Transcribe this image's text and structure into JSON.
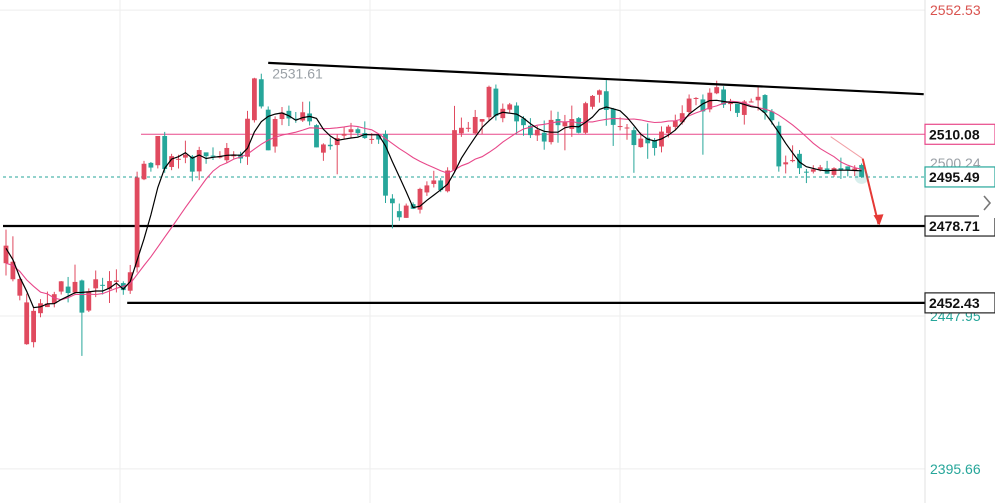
{
  "colors": {
    "up": "#e04a5f",
    "down": "#26a69a",
    "grid": "#eeeeee",
    "ma_fast": "#000000",
    "ma_slow": "#e8488a",
    "resistance": "#e8488a",
    "arrow": "#e53935",
    "current_line": "#26a69a",
    "tag_bg": "#ffffff",
    "tag_border": "#222222",
    "axis_red": "#d9534f",
    "axis_green": "#26a69a",
    "axis_gray": "#9aa0a6"
  },
  "chart_data": {
    "type": "candlestick",
    "title": "",
    "ylim": [
      2384,
      2556
    ],
    "grid": true,
    "axis_labels": [
      {
        "value": 2552.53,
        "text": "2552.53",
        "color": "red"
      },
      {
        "value": 2500.24,
        "text": "2500.24",
        "color": "gray"
      },
      {
        "value": 2447.95,
        "text": "2447.95",
        "color": "green"
      },
      {
        "value": 2395.66,
        "text": "2395.66",
        "color": "green"
      }
    ],
    "price_tags": [
      {
        "value": 2510.08,
        "text": "2510.08",
        "style": "pink"
      },
      {
        "value": 2495.49,
        "text": "2495.49",
        "style": "green"
      },
      {
        "value": 2478.71,
        "text": "2478.71",
        "style": "black"
      },
      {
        "value": 2452.43,
        "text": "2452.43",
        "style": "black"
      }
    ],
    "annotations": [
      {
        "text": "2531.61",
        "value": 2531.61,
        "bar": 38
      }
    ],
    "horizontal_levels": [
      {
        "value": 2510.08,
        "style": "pink",
        "from_bar": 20
      },
      {
        "value": 2495.49,
        "style": "dashed-green",
        "from_bar": 0
      },
      {
        "value": 2478.71,
        "style": "black",
        "from_bar": 0
      },
      {
        "value": 2452.43,
        "style": "black",
        "from_bar": 18
      }
    ],
    "trendline": {
      "from": {
        "bar": 38,
        "value": 2534.5
      },
      "to": {
        "bar": 133,
        "value": 2523.8
      }
    },
    "forecast_arrow": {
      "from": {
        "bar": 123,
        "value": 2499.0
      },
      "to": {
        "bar": 125,
        "value": 2480.0
      }
    },
    "candles": [
      [
        2466.0,
        2472.0,
        2461.8,
        2477.5
      ],
      [
        2460.5,
        2466.5,
        2459.8,
        2475.2
      ],
      [
        2454.9,
        2460.6,
        2453.3,
        2461.4
      ],
      [
        2438.3,
        2452.6,
        2438.1,
        2455.6
      ],
      [
        2439.0,
        2449.7,
        2437.2,
        2450.6
      ],
      [
        2448.9,
        2452.3,
        2447.5,
        2453.7
      ],
      [
        2451.0,
        2452.2,
        2451.0,
        2456.3
      ],
      [
        2452.3,
        2455.4,
        2450.9,
        2456.2
      ],
      [
        2456.3,
        2459.8,
        2455.3,
        2459.9
      ],
      [
        2458.0,
        2455.8,
        2452.6,
        2461.3
      ],
      [
        2456.0,
        2459.6,
        2455.1,
        2465.5
      ],
      [
        2460.1,
        2449.1,
        2434.3,
        2460.4
      ],
      [
        2449.8,
        2456.4,
        2449.3,
        2457.4
      ],
      [
        2457.4,
        2460.5,
        2454.4,
        2463.5
      ],
      [
        2458.6,
        2458.4,
        2455.3,
        2461.0
      ],
      [
        2457.1,
        2459.9,
        2452.4,
        2463.3
      ],
      [
        2459.6,
        2460.1,
        2456.0,
        2463.9
      ],
      [
        2459.2,
        2456.8,
        2455.2,
        2459.8
      ],
      [
        2456.6,
        2462.9,
        2455.5,
        2465.4
      ],
      [
        2464.6,
        2495.3,
        2462.8,
        2497.3
      ],
      [
        2494.7,
        2500.0,
        2494.4,
        2501.0
      ],
      [
        2500.3,
        2498.7,
        2497.3,
        2500.6
      ],
      [
        2499.5,
        2509.5,
        2498.4,
        2509.5
      ],
      [
        2509.5,
        2498.2,
        2496.9,
        2510.9
      ],
      [
        2498.9,
        2502.6,
        2497.8,
        2503.4
      ],
      [
        2501.7,
        2501.7,
        2498.4,
        2503.1
      ],
      [
        2502.1,
        2503.1,
        2500.2,
        2507.9
      ],
      [
        2502.5,
        2497.3,
        2494.0,
        2503.0
      ],
      [
        2497.4,
        2504.7,
        2494.4,
        2505.8
      ],
      [
        2503.9,
        2502.6,
        2500.0,
        2503.8
      ],
      [
        2502.8,
        2502.4,
        2501.3,
        2505.6
      ],
      [
        2502.1,
        2502.6,
        2501.8,
        2504.3
      ],
      [
        2501.2,
        2505.4,
        2500.2,
        2507.1
      ],
      [
        2502.7,
        2502.9,
        2501.8,
        2504.3
      ],
      [
        2503.2,
        2501.8,
        2500.2,
        2504.1
      ],
      [
        2502.4,
        2515.4,
        2499.6,
        2518.1
      ],
      [
        2514.9,
        2529.2,
        2514.1,
        2529.4
      ],
      [
        2528.9,
        2519.6,
        2518.9,
        2530.8
      ],
      [
        2518.5,
        2504.6,
        2504.6,
        2519.6
      ],
      [
        2505.9,
        2515.3,
        2503.8,
        2516.2
      ],
      [
        2515.3,
        2517.5,
        2513.2,
        2519.4
      ],
      [
        2518.1,
        2515.5,
        2512.9,
        2519.9
      ],
      [
        2515.4,
        2515.1,
        2514.0,
        2517.7
      ],
      [
        2514.8,
        2517.6,
        2514.3,
        2521.2
      ],
      [
        2517.2,
        2514.5,
        2513.1,
        2521.3
      ],
      [
        2513.2,
        2505.6,
        2505.6,
        2513.5
      ],
      [
        2503.8,
        2506.6,
        2501.0,
        2507.0
      ],
      [
        2506.5,
        2506.0,
        2504.8,
        2509.0
      ],
      [
        2506.4,
        2508.8,
        2496.4,
        2510.1
      ],
      [
        2509.6,
        2510.2,
        2508.3,
        2512.6
      ],
      [
        2510.8,
        2511.8,
        2508.9,
        2514.0
      ],
      [
        2511.8,
        2510.5,
        2509.3,
        2512.4
      ],
      [
        2510.5,
        2508.8,
        2508.5,
        2514.5
      ],
      [
        2508.4,
        2508.5,
        2506.8,
        2510.5
      ],
      [
        2509.9,
        2508.3,
        2506.8,
        2510.3
      ],
      [
        2510.2,
        2489.1,
        2486.6,
        2511.4
      ],
      [
        2488.1,
        2486.5,
        2477.9,
        2489.6
      ],
      [
        2483.8,
        2481.7,
        2480.5,
        2486.4
      ],
      [
        2481.5,
        2485.7,
        2481.5,
        2486.4
      ],
      [
        2486.2,
        2484.6,
        2484.5,
        2486.8
      ],
      [
        2484.3,
        2491.4,
        2483.0,
        2491.8
      ],
      [
        2490.2,
        2492.6,
        2489.0,
        2494.0
      ],
      [
        2493.1,
        2494.3,
        2491.9,
        2497.6
      ],
      [
        2494.3,
        2491.0,
        2490.3,
        2495.1
      ],
      [
        2490.6,
        2497.7,
        2490.2,
        2498.8
      ],
      [
        2497.9,
        2511.5,
        2497.0,
        2519.8
      ],
      [
        2510.4,
        2512.3,
        2509.2,
        2515.8
      ],
      [
        2512.0,
        2512.3,
        2510.9,
        2514.3
      ],
      [
        2510.4,
        2516.0,
        2510.0,
        2518.4
      ],
      [
        2514.4,
        2515.3,
        2510.2,
        2515.3
      ],
      [
        2515.9,
        2526.3,
        2514.8,
        2526.7
      ],
      [
        2525.7,
        2516.4,
        2514.8,
        2527.1
      ],
      [
        2515.6,
        2518.8,
        2514.2,
        2520.6
      ],
      [
        2518.5,
        2520.3,
        2517.5,
        2520.8
      ],
      [
        2519.9,
        2514.5,
        2510.0,
        2521.0
      ],
      [
        2515.5,
        2513.2,
        2509.6,
        2516.3
      ],
      [
        2513.0,
        2509.8,
        2508.8,
        2515.6
      ],
      [
        2509.7,
        2511.6,
        2507.8,
        2512.9
      ],
      [
        2510.6,
        2507.6,
        2504.8,
        2514.8
      ],
      [
        2507.4,
        2515.0,
        2506.6,
        2518.2
      ],
      [
        2515.3,
        2513.2,
        2507.2,
        2517.8
      ],
      [
        2512.8,
        2514.2,
        2504.6,
        2516.7
      ],
      [
        2511.9,
        2515.3,
        2509.2,
        2519.9
      ],
      [
        2515.6,
        2510.6,
        2510.4,
        2516.0
      ],
      [
        2510.6,
        2520.7,
        2510.1,
        2521.2
      ],
      [
        2519.5,
        2523.2,
        2518.6,
        2523.5
      ],
      [
        2523.6,
        2525.1,
        2520.9,
        2525.4
      ],
      [
        2524.8,
        2518.4,
        2513.0,
        2528.6
      ],
      [
        2518.8,
        2513.3,
        2506.1,
        2519.1
      ],
      [
        2512.6,
        2512.9,
        2511.4,
        2515.9
      ],
      [
        2512.4,
        2512.4,
        2508.2,
        2513.6
      ],
      [
        2511.5,
        2506.4,
        2496.9,
        2512.5
      ],
      [
        2505.7,
        2508.6,
        2505.5,
        2510.7
      ],
      [
        2508.9,
        2507.0,
        2501.7,
        2513.8
      ],
      [
        2508.0,
        2505.4,
        2502.8,
        2508.8
      ],
      [
        2505.9,
        2511.0,
        2503.9,
        2512.8
      ],
      [
        2510.5,
        2512.7,
        2509.0,
        2513.3
      ],
      [
        2512.6,
        2514.6,
        2511.6,
        2516.8
      ],
      [
        2514.2,
        2517.3,
        2513.4,
        2520.0
      ],
      [
        2517.7,
        2522.3,
        2516.8,
        2523.7
      ],
      [
        2522.5,
        2522.5,
        2520.0,
        2522.8
      ],
      [
        2522.0,
        2517.9,
        2503.1,
        2523.7
      ],
      [
        2518.6,
        2524.3,
        2517.6,
        2525.8
      ],
      [
        2524.1,
        2526.2,
        2523.8,
        2528.4
      ],
      [
        2525.4,
        2520.2,
        2519.1,
        2526.5
      ],
      [
        2520.4,
        2520.8,
        2518.0,
        2522.2
      ],
      [
        2520.5,
        2517.4,
        2516.0,
        2520.5
      ],
      [
        2516.7,
        2521.3,
        2513.4,
        2521.8
      ],
      [
        2521.1,
        2521.3,
        2521.1,
        2522.3
      ],
      [
        2521.7,
        2522.9,
        2518.2,
        2526.3
      ],
      [
        2523.5,
        2517.5,
        2515.1,
        2523.8
      ],
      [
        2517.9,
        2514.9,
        2513.4,
        2518.7
      ],
      [
        2513.0,
        2499.1,
        2497.3,
        2514.4
      ],
      [
        2499.8,
        2500.5,
        2496.7,
        2502.8
      ],
      [
        2500.9,
        2501.3,
        2500.5,
        2506.3
      ],
      [
        2503.4,
        2498.5,
        2496.5,
        2504.7
      ],
      [
        2497.3,
        2497.1,
        2493.4,
        2498.2
      ],
      [
        2497.3,
        2498.1,
        2496.7,
        2499.5
      ],
      [
        2498.0,
        2498.8,
        2497.4,
        2499.6
      ],
      [
        2498.4,
        2496.6,
        2496.6,
        2501.0
      ],
      [
        2496.2,
        2498.5,
        2495.5,
        2498.8
      ],
      [
        2498.5,
        2497.9,
        2494.8,
        2502.1
      ],
      [
        2499.1,
        2497.7,
        2495.7,
        2499.1
      ],
      [
        2497.5,
        2498.4,
        2495.8,
        2499.5
      ],
      [
        2499.6,
        2495.5,
        2495.2,
        2500.1
      ]
    ],
    "ma_fast": [
      2471.1,
      2467.2,
      2461.2,
      2456.4,
      2450.8,
      2451.1,
      2452.1,
      2452.2,
      2453.6,
      2454.7,
      2455.9,
      2456.0,
      2456.2,
      2456.5,
      2456.5,
      2457.5,
      2459.2,
      2457.1,
      2459.7,
      2467.0,
      2474.3,
      2482.5,
      2491.9,
      2498.5,
      2501.6,
      2502.4,
      2503.8,
      2501.9,
      2503.0,
      2501.8,
      2502.2,
      2502.5,
      2502.9,
      2503.0,
      2502.9,
      2505.3,
      2510.9,
      2514.4,
      2516.2,
      2517.0,
      2517.4,
      2516.4,
      2514.9,
      2515.8,
      2516.2,
      2515.5,
      2511.8,
      2509.5,
      2508.0,
      2508.4,
      2508.8,
      2509.1,
      2510.0,
      2509.9,
      2509.9,
      2506.1,
      2500.7,
      2495.6,
      2490.4,
      2485.0,
      2485.5,
      2487.5,
      2489.3,
      2491.1,
      2493.0,
      2497.1,
      2501.9,
      2505.6,
      2509.1,
      2512.4,
      2514.7,
      2516.7,
      2517.6,
      2517.3,
      2517.0,
      2515.6,
      2513.7,
      2512.1,
      2511.1,
      2510.8,
      2510.8,
      2512.3,
      2512.8,
      2512.6,
      2514.2,
      2516.0,
      2518.6,
      2519.4,
      2518.8,
      2518.1,
      2515.9,
      2513.1,
      2510.1,
      2508.4,
      2507.8,
      2508.5,
      2509.8,
      2511.5,
      2514.1,
      2517.0,
      2518.8,
      2520.5,
      2521.6,
      2521.7,
      2521.3,
      2521.0,
      2520.9,
      2520.3,
      2519.5,
      2519.2,
      2517.3,
      2514.1,
      2510.7,
      2507.0,
      2503.7,
      2500.6,
      2499.0,
      2498.4,
      2497.8,
      2497.6,
      2497.8,
      2497.8,
      2497.8,
      2497.7,
      2497.6
    ],
    "ma_slow": [
      2466.0,
      2465.2,
      2463.2,
      2460.3,
      2458.1,
      2456.1,
      2455.5,
      2454.1,
      2453.5,
      2454.2,
      2455.3,
      2455.3,
      2455.4,
      2455.3,
      2455.6,
      2456.5,
      2457.4,
      2458.1,
      2459.0,
      2462.1,
      2465.2,
      2468.2,
      2471.5,
      2474.9,
      2478.2,
      2481.6,
      2485.0,
      2488.3,
      2491.5,
      2494.8,
      2497.5,
      2499.3,
      2500.3,
      2501.6,
      2502.3,
      2503.3,
      2505.0,
      2506.7,
      2508.1,
      2509.0,
      2509.8,
      2510.3,
      2510.8,
      2511.5,
      2512.3,
      2512.2,
      2512.0,
      2512.1,
      2512.3,
      2512.6,
      2513.0,
      2512.7,
      2512.1,
      2511.6,
      2510.2,
      2508.6,
      2506.9,
      2505.2,
      2503.7,
      2502.1,
      2500.8,
      2499.7,
      2498.7,
      2497.6,
      2496.8,
      2497.9,
      2499.3,
      2500.2,
      2501.6,
      2502.4,
      2503.9,
      2505.5,
      2507.4,
      2509.0,
      2510.6,
      2511.9,
      2512.5,
      2513.2,
      2513.5,
      2513.9,
      2514.4,
      2514.3,
      2514.5,
      2513.9,
      2514.3,
      2514.3,
      2514.8,
      2515.2,
      2515.5,
      2515.4,
      2515.2,
      2515.3,
      2515.0,
      2514.5,
      2514.1,
      2514.2,
      2514.6,
      2514.7,
      2515.3,
      2516.4,
      2517.4,
      2518.2,
      2519.2,
      2519.8,
      2520.7,
      2521.4,
      2521.2,
      2520.8,
      2519.9,
      2519.2,
      2518.7,
      2517.9,
      2516.6,
      2515.0,
      2513.3,
      2511.3,
      2509.2,
      2507.0,
      2505.2,
      2503.8,
      2502.4,
      2500.6,
      2499.5,
      2498.7,
      2498.1
    ]
  }
}
